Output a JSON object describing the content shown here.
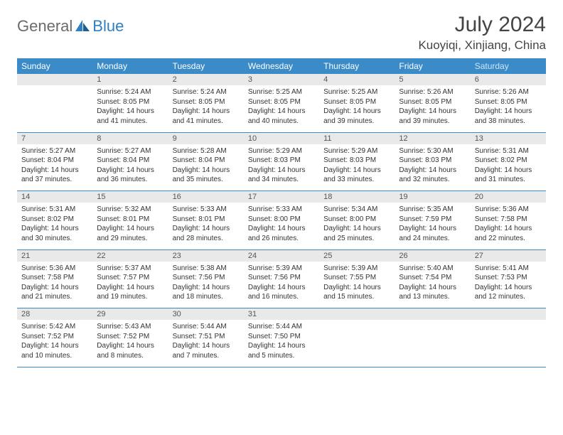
{
  "logo": {
    "text1": "General",
    "text2": "Blue",
    "accent": "#2f7fc2",
    "gray": "#6b6b6b"
  },
  "title": "July 2024",
  "location": "Kuoyiqi, Xinjiang, China",
  "colors": {
    "header_bg": "#3b8bc9",
    "header_text": "#ffffff",
    "daynum_bg": "#e9e9e9",
    "rule": "#3b8bc9",
    "text": "#333333"
  },
  "days_of_week": [
    "Sunday",
    "Monday",
    "Tuesday",
    "Wednesday",
    "Thursday",
    "Friday",
    "Saturday"
  ],
  "weeks": [
    [
      null,
      {
        "n": "1",
        "sr": "5:24 AM",
        "ss": "8:05 PM",
        "dl": "14 hours and 41 minutes."
      },
      {
        "n": "2",
        "sr": "5:24 AM",
        "ss": "8:05 PM",
        "dl": "14 hours and 41 minutes."
      },
      {
        "n": "3",
        "sr": "5:25 AM",
        "ss": "8:05 PM",
        "dl": "14 hours and 40 minutes."
      },
      {
        "n": "4",
        "sr": "5:25 AM",
        "ss": "8:05 PM",
        "dl": "14 hours and 39 minutes."
      },
      {
        "n": "5",
        "sr": "5:26 AM",
        "ss": "8:05 PM",
        "dl": "14 hours and 39 minutes."
      },
      {
        "n": "6",
        "sr": "5:26 AM",
        "ss": "8:05 PM",
        "dl": "14 hours and 38 minutes."
      }
    ],
    [
      {
        "n": "7",
        "sr": "5:27 AM",
        "ss": "8:04 PM",
        "dl": "14 hours and 37 minutes."
      },
      {
        "n": "8",
        "sr": "5:27 AM",
        "ss": "8:04 PM",
        "dl": "14 hours and 36 minutes."
      },
      {
        "n": "9",
        "sr": "5:28 AM",
        "ss": "8:04 PM",
        "dl": "14 hours and 35 minutes."
      },
      {
        "n": "10",
        "sr": "5:29 AM",
        "ss": "8:03 PM",
        "dl": "14 hours and 34 minutes."
      },
      {
        "n": "11",
        "sr": "5:29 AM",
        "ss": "8:03 PM",
        "dl": "14 hours and 33 minutes."
      },
      {
        "n": "12",
        "sr": "5:30 AM",
        "ss": "8:03 PM",
        "dl": "14 hours and 32 minutes."
      },
      {
        "n": "13",
        "sr": "5:31 AM",
        "ss": "8:02 PM",
        "dl": "14 hours and 31 minutes."
      }
    ],
    [
      {
        "n": "14",
        "sr": "5:31 AM",
        "ss": "8:02 PM",
        "dl": "14 hours and 30 minutes."
      },
      {
        "n": "15",
        "sr": "5:32 AM",
        "ss": "8:01 PM",
        "dl": "14 hours and 29 minutes."
      },
      {
        "n": "16",
        "sr": "5:33 AM",
        "ss": "8:01 PM",
        "dl": "14 hours and 28 minutes."
      },
      {
        "n": "17",
        "sr": "5:33 AM",
        "ss": "8:00 PM",
        "dl": "14 hours and 26 minutes."
      },
      {
        "n": "18",
        "sr": "5:34 AM",
        "ss": "8:00 PM",
        "dl": "14 hours and 25 minutes."
      },
      {
        "n": "19",
        "sr": "5:35 AM",
        "ss": "7:59 PM",
        "dl": "14 hours and 24 minutes."
      },
      {
        "n": "20",
        "sr": "5:36 AM",
        "ss": "7:58 PM",
        "dl": "14 hours and 22 minutes."
      }
    ],
    [
      {
        "n": "21",
        "sr": "5:36 AM",
        "ss": "7:58 PM",
        "dl": "14 hours and 21 minutes."
      },
      {
        "n": "22",
        "sr": "5:37 AM",
        "ss": "7:57 PM",
        "dl": "14 hours and 19 minutes."
      },
      {
        "n": "23",
        "sr": "5:38 AM",
        "ss": "7:56 PM",
        "dl": "14 hours and 18 minutes."
      },
      {
        "n": "24",
        "sr": "5:39 AM",
        "ss": "7:56 PM",
        "dl": "14 hours and 16 minutes."
      },
      {
        "n": "25",
        "sr": "5:39 AM",
        "ss": "7:55 PM",
        "dl": "14 hours and 15 minutes."
      },
      {
        "n": "26",
        "sr": "5:40 AM",
        "ss": "7:54 PM",
        "dl": "14 hours and 13 minutes."
      },
      {
        "n": "27",
        "sr": "5:41 AM",
        "ss": "7:53 PM",
        "dl": "14 hours and 12 minutes."
      }
    ],
    [
      {
        "n": "28",
        "sr": "5:42 AM",
        "ss": "7:52 PM",
        "dl": "14 hours and 10 minutes."
      },
      {
        "n": "29",
        "sr": "5:43 AM",
        "ss": "7:52 PM",
        "dl": "14 hours and 8 minutes."
      },
      {
        "n": "30",
        "sr": "5:44 AM",
        "ss": "7:51 PM",
        "dl": "14 hours and 7 minutes."
      },
      {
        "n": "31",
        "sr": "5:44 AM",
        "ss": "7:50 PM",
        "dl": "14 hours and 5 minutes."
      },
      null,
      null,
      null
    ]
  ],
  "labels": {
    "sunrise": "Sunrise:",
    "sunset": "Sunset:",
    "daylight": "Daylight:"
  }
}
